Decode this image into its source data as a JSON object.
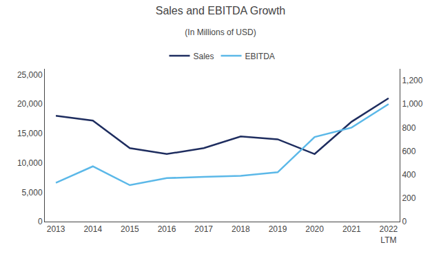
{
  "chart_data": {
    "type": "line",
    "title": "Sales and EBITDA Growth",
    "subtitle": "(In Millions of USD)",
    "categories": [
      "2013",
      "2014",
      "2015",
      "2016",
      "2017",
      "2018",
      "2019",
      "2020",
      "2021",
      "2022\nLTM"
    ],
    "series": [
      {
        "name": "Sales",
        "color": "#1e2d5f",
        "values": [
          18000,
          17200,
          12500,
          11500,
          12500,
          14500,
          14000,
          11500,
          17000,
          21000
        ]
      },
      {
        "name": "EBITDA",
        "color": "#5bb8e8",
        "axis": "y2",
        "values": [
          330,
          470,
          310,
          370,
          380,
          390,
          420,
          720,
          800,
          1000
        ]
      }
    ],
    "ylim": [
      0,
      26000
    ],
    "yticks": [
      0,
      {
        "value": 5000,
        "label": "5,000"
      },
      {
        "value": 10000,
        "label": "10,000"
      },
      {
        "value": 15000,
        "label": "15,000"
      },
      {
        "value": 20000,
        "label": "20,000"
      },
      {
        "value": 25000,
        "label": "25,000"
      }
    ],
    "y2lim": [
      0,
      1300
    ],
    "y2ticks": [
      0,
      200,
      400,
      600,
      800,
      {
        "value": 1000,
        "label": "1,000"
      },
      {
        "value": 1200,
        "label": "1,200"
      }
    ],
    "grid": false,
    "legend": "top"
  }
}
